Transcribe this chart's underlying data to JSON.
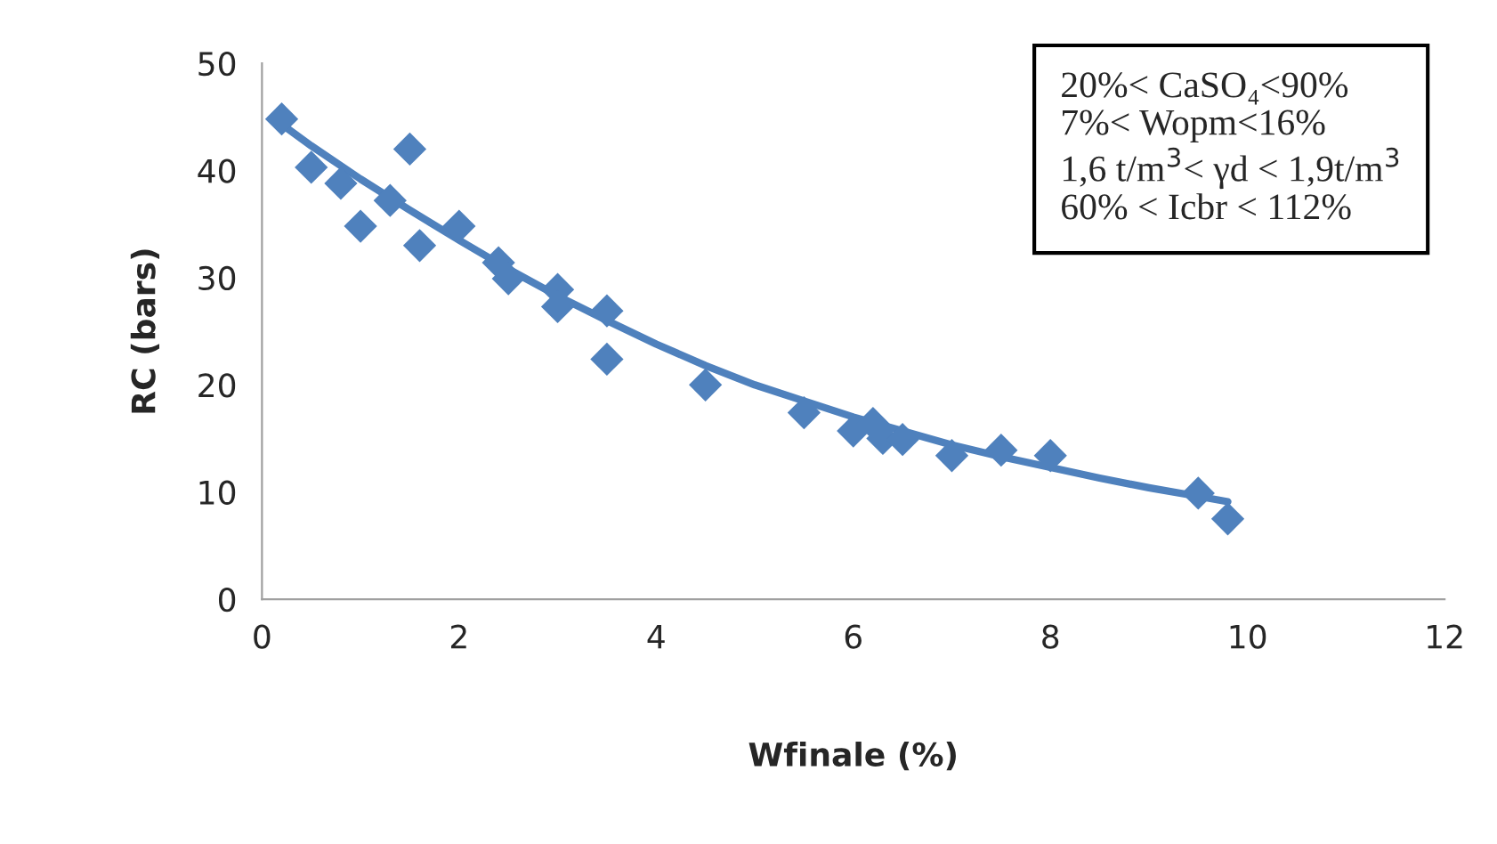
{
  "chart_data": {
    "type": "scatter",
    "xlabel": "Wfinale (%)",
    "ylabel": "RC (bars)",
    "x": [
      0.2,
      0.5,
      0.8,
      1,
      1.3,
      1.5,
      1.6,
      2,
      2.4,
      2.5,
      3,
      3,
      3.5,
      3.5,
      4.5,
      5.5,
      6,
      6.2,
      6.3,
      6.5,
      7,
      7.5,
      8,
      9.5,
      9.8
    ],
    "series": [
      {
        "color": "#4f81bd",
        "marker": "diamond",
        "values": [
          44.8,
          40.3,
          38.8,
          34.8,
          37.2,
          42,
          33,
          34.8,
          31.4,
          29.9,
          28.9,
          27.3,
          26.9,
          22.4,
          20,
          17.4,
          15.7,
          16.4,
          15,
          14.9,
          13.4,
          13.9,
          13.4,
          9.9,
          7.5
        ]
      },
      {
        "type": "line",
        "color": "#4f81bd",
        "line_style": "solid",
        "marker": "none",
        "x": [
          0.2,
          0.5,
          1,
          1.5,
          2,
          2.5,
          3,
          3.5,
          4,
          4.5,
          5,
          5.5,
          6,
          6.5,
          7,
          7.5,
          8,
          8.5,
          9,
          9.5,
          9.8
        ],
        "values": [
          44.3,
          42.3,
          39.2,
          36.3,
          33.5,
          30.8,
          28.3,
          26,
          23.8,
          21.8,
          20,
          18.5,
          17,
          15.7,
          14.4,
          13.3,
          12.3,
          11.3,
          10.4,
          9.6,
          9.1
        ]
      }
    ],
    "xlim": [
      0,
      12
    ],
    "xticks": [
      0,
      2,
      4,
      6,
      8,
      10,
      12
    ],
    "ylim": [
      0,
      50
    ],
    "yticks": [
      0,
      10,
      20,
      30,
      40,
      50
    ],
    "grid": false,
    "legend": false,
    "annotations": [
      "20%< CaSO₄<90%\n7%< Wopm<16%\n1,6 t/m$^{3}$< γd < 1,9t/m$^{3}$\n60% < Icbr < 112%"
    ]
  }
}
